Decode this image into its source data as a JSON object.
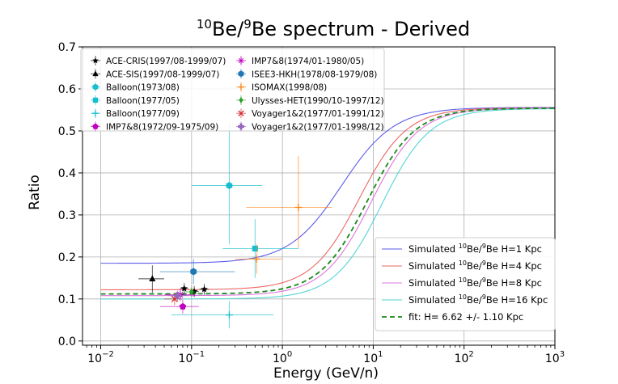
{
  "chart_data": {
    "type": "scatter",
    "title": {
      "sup1": "10",
      "mid": "Be/",
      "sup2": "9",
      "rest": "Be spectrum - Derived"
    },
    "xlabel": "Energy (GeV/n)",
    "ylabel": "Ratio",
    "xscale": "log",
    "xlim": [
      0.0063,
      1000
    ],
    "ylim": [
      -0.01,
      0.7
    ],
    "xticks": [
      {
        "value": 0.01,
        "base": "10",
        "exp": "−2"
      },
      {
        "value": 0.1,
        "base": "10",
        "exp": "−1"
      },
      {
        "value": 1,
        "base": "10",
        "exp": "0"
      },
      {
        "value": 10,
        "base": "10",
        "exp": "1"
      },
      {
        "value": 100,
        "base": "10",
        "exp": "2"
      },
      {
        "value": 1000,
        "base": "10",
        "exp": "3"
      }
    ],
    "yticks": [
      {
        "value": 0.0,
        "label": "0.0"
      },
      {
        "value": 0.1,
        "label": "0.1"
      },
      {
        "value": 0.2,
        "label": "0.2"
      },
      {
        "value": 0.3,
        "label": "0.3"
      },
      {
        "value": 0.4,
        "label": "0.4"
      },
      {
        "value": 0.5,
        "label": "0.5"
      },
      {
        "value": 0.6,
        "label": "0.6"
      },
      {
        "value": 0.7,
        "label": "0.7"
      }
    ],
    "grid": true,
    "data_legend": [
      {
        "label": "ACE-CRIS(1997/08-1999/07)",
        "color": "#000000",
        "marker": "star"
      },
      {
        "label": "ACE-SIS(1997/08-1999/07)",
        "color": "#000000",
        "marker": "triangle"
      },
      {
        "label": "Balloon(1973/08)",
        "color": "#17becf",
        "marker": "hexagon"
      },
      {
        "label": "Balloon(1977/05)",
        "color": "#17becf",
        "marker": "square"
      },
      {
        "label": "Balloon(1977/09)",
        "color": "#17becf",
        "marker": "plus"
      },
      {
        "label": "IMP7&8(1972/09-1975/09)",
        "color": "#c000c0",
        "marker": "pentagon"
      },
      {
        "label": "IMP7&8(1974/01-1980/05)",
        "color": "#c000c0",
        "marker": "tri"
      },
      {
        "label": "ISEE3-HKH(1978/08-1979/08)",
        "color": "#1f77b4",
        "marker": "hexagon"
      },
      {
        "label": "ISOMAX(1998/08)",
        "color": "#ff7f0e",
        "marker": "plus"
      },
      {
        "label": "Ulysses-HET(1990/10-1997/12)",
        "color": "#2ca02c",
        "marker": "diamond"
      },
      {
        "label": "Voyager1&2(1977/01-1991/12)",
        "color": "#d62728",
        "marker": "x"
      },
      {
        "label": "Voyager1&2(1977/01-1998/12)",
        "color": "#9467bd",
        "marker": "plusfilled"
      }
    ],
    "points": [
      {
        "series": "ACE-CRIS(1997/08-1999/07)",
        "color": "#000000",
        "marker": "star",
        "x": 0.083,
        "y": 0.125,
        "xerr": [
          0.075,
          0.092
        ],
        "yerr": [
          0.112,
          0.138
        ]
      },
      {
        "series": "ACE-CRIS(1997/08-1999/07)",
        "color": "#000000",
        "marker": "star",
        "x": 0.107,
        "y": 0.118,
        "xerr": [
          0.095,
          0.12
        ],
        "yerr": [
          0.105,
          0.131
        ]
      },
      {
        "series": "ACE-CRIS(1997/08-1999/07)",
        "color": "#000000",
        "marker": "star",
        "x": 0.138,
        "y": 0.123,
        "xerr": [
          0.122,
          0.155
        ],
        "yerr": [
          0.11,
          0.136
        ]
      },
      {
        "series": "ACE-SIS(1997/08-1999/07)",
        "color": "#000000",
        "marker": "triangle",
        "x": 0.037,
        "y": 0.148,
        "xerr": [
          0.026,
          0.05
        ],
        "yerr": [
          0.115,
          0.18
        ]
      },
      {
        "series": "Balloon(1973/08)",
        "color": "#17becf",
        "marker": "hexagon",
        "x": 0.26,
        "y": 0.37,
        "xerr": [
          0.1,
          0.6
        ],
        "yerr": [
          0.23,
          0.52
        ]
      },
      {
        "series": "Balloon(1977/05)",
        "color": "#17becf",
        "marker": "square",
        "x": 0.5,
        "y": 0.22,
        "xerr": [
          0.22,
          1.5
        ],
        "yerr": [
          0.15,
          0.29
        ]
      },
      {
        "series": "Balloon(1977/09)",
        "color": "#17becf",
        "marker": "plus",
        "x": 0.26,
        "y": 0.062,
        "xerr": [
          0.06,
          0.8
        ],
        "yerr": [
          0.03,
          0.095
        ]
      },
      {
        "series": "IMP7&8(1972/09-1975/09)",
        "color": "#c000c0",
        "marker": "pentagon",
        "x": 0.08,
        "y": 0.082,
        "xerr": [
          0.045,
          0.12
        ],
        "yerr": [
          0.065,
          0.098
        ]
      },
      {
        "series": "IMP7&8(1974/01-1980/05)",
        "color": "#c000c0",
        "marker": "tri",
        "x": 0.075,
        "y": 0.11,
        "xerr": [
          0.05,
          0.11
        ],
        "yerr": [
          0.095,
          0.125
        ]
      },
      {
        "series": "ISEE3-HKH(1978/08-1979/08)",
        "color": "#1f77b4",
        "marker": "hexagon",
        "x": 0.105,
        "y": 0.165,
        "xerr": [
          0.045,
          0.3
        ],
        "yerr": [
          0.135,
          0.195
        ]
      },
      {
        "series": "ISOMAX(1998/08)",
        "color": "#ff7f0e",
        "marker": "plus",
        "x": 1.5,
        "y": 0.318,
        "xerr": [
          0.4,
          3.5
        ],
        "yerr": [
          0.22,
          0.44
        ]
      },
      {
        "series": "ISOMAX(1998/08)",
        "color": "#ff7f0e",
        "marker": "plus",
        "x": 0.52,
        "y": 0.195,
        "xerr": [
          0.3,
          1.0
        ],
        "yerr": [
          0.16,
          0.23
        ]
      },
      {
        "series": "Ulysses-HET(1990/10-1997/12)",
        "color": "#2ca02c",
        "marker": "diamond",
        "x": 0.1,
        "y": 0.117,
        "xerr": [
          0.085,
          0.115
        ],
        "yerr": [
          0.105,
          0.129
        ]
      },
      {
        "series": "Voyager1&2(1977/01-1991/12)",
        "color": "#d62728",
        "marker": "x",
        "x": 0.065,
        "y": 0.1,
        "xerr": [
          0.05,
          0.08
        ],
        "yerr": [
          0.085,
          0.115
        ]
      },
      {
        "series": "Voyager1&2(1977/01-1998/12)",
        "color": "#9467bd",
        "marker": "plusfilled",
        "x": 0.07,
        "y": 0.108,
        "xerr": [
          0.055,
          0.09
        ],
        "yerr": [
          0.095,
          0.12
        ]
      }
    ],
    "curves": [
      {
        "name": "Simulated 10Be/9Be H=1 Kpc",
        "label_pre": "Simulated ",
        "sup1": "10",
        "label_mid": "Be/",
        "sup2": "9",
        "label_post": "Be H=1 Kpc",
        "color": "#5b5bea",
        "dash": "",
        "base": 0.185,
        "top": 0.556,
        "center": 4.5,
        "width": 0.55
      },
      {
        "name": "Simulated 10Be/9Be H=4 Kpc",
        "label_pre": "Simulated ",
        "sup1": "10",
        "label_mid": "Be/",
        "sup2": "9",
        "label_post": "Be H=4 Kpc",
        "color": "#ee6666",
        "dash": "",
        "base": 0.122,
        "top": 0.555,
        "center": 7.0,
        "width": 0.5
      },
      {
        "name": "Simulated 10Be/9Be H=8 Kpc",
        "label_pre": "Simulated ",
        "sup1": "10",
        "label_mid": "Be/",
        "sup2": "9",
        "label_post": "Be H=8 Kpc",
        "color": "#dd77dd",
        "dash": "",
        "base": 0.108,
        "top": 0.554,
        "center": 9.5,
        "width": 0.5
      },
      {
        "name": "Simulated 10Be/9Be H=16 Kpc",
        "label_pre": "Simulated ",
        "sup1": "10",
        "label_mid": "Be/",
        "sup2": "9",
        "label_post": "Be H=16 Kpc",
        "color": "#55d4d4",
        "dash": "",
        "base": 0.1,
        "top": 0.553,
        "center": 12.5,
        "width": 0.5
      },
      {
        "name": "fit: H= 6.62 +/-  1.10 Kpc",
        "label_pre": "fit: H= 6.62 +/-  1.10 Kpc",
        "sup1": "",
        "label_mid": "",
        "sup2": "",
        "label_post": "",
        "color": "#1a8a1a",
        "dash": "6,4",
        "base": 0.112,
        "top": 0.554,
        "center": 8.6,
        "width": 0.5
      }
    ]
  }
}
